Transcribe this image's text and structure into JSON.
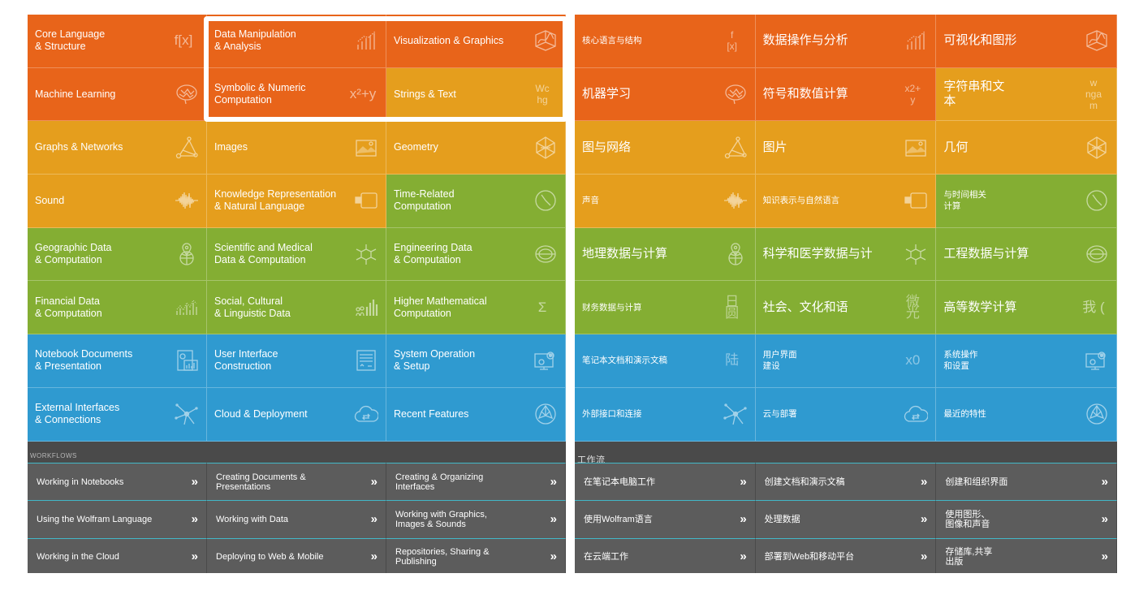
{
  "colors": {
    "orange": "#e8641a",
    "amber": "#e59e1d",
    "green": "#84ae33",
    "blue": "#2f9ad0",
    "workflow_bg": "#5c5c5c",
    "workflow_accent": "#42b8c8"
  },
  "english": {
    "tiles": [
      {
        "label": "Core Language\n& Structure",
        "color": "orange",
        "icon": "function-icon",
        "glyph": "f[x]"
      },
      {
        "label": "Data Manipulation\n& Analysis",
        "color": "orange",
        "icon": "bar-chart-icon",
        "glyph": ""
      },
      {
        "label": "Visualization & Graphics",
        "color": "orange",
        "icon": "3d-plot-icon",
        "glyph": ""
      },
      {
        "label": "Machine Learning",
        "color": "orange",
        "icon": "brain-icon",
        "glyph": ""
      },
      {
        "label": "Symbolic & Numeric\nComputation",
        "color": "orange",
        "icon": "equation-icon",
        "glyph": "x²+y"
      },
      {
        "label": "Strings & Text",
        "color": "amber",
        "icon": "text-icon",
        "glyph": "Wc\nhg"
      },
      {
        "label": "Graphs & Networks",
        "color": "amber",
        "icon": "graph-icon",
        "glyph": ""
      },
      {
        "label": "Images",
        "color": "amber",
        "icon": "image-icon",
        "glyph": ""
      },
      {
        "label": "Geometry",
        "color": "amber",
        "icon": "polyhedron-icon",
        "glyph": ""
      },
      {
        "label": "Sound",
        "color": "amber",
        "icon": "waveform-icon",
        "glyph": ""
      },
      {
        "label": "Knowledge Representation\n& Natural Language",
        "color": "amber",
        "icon": "speech-icon",
        "glyph": ""
      },
      {
        "label": "Time-Related\nComputation",
        "color": "green",
        "icon": "clock-icon",
        "glyph": ""
      },
      {
        "label": "Geographic Data\n& Computation",
        "color": "green",
        "icon": "globe-pin-icon",
        "glyph": ""
      },
      {
        "label": "Scientific and Medical\nData & Computation",
        "color": "green",
        "icon": "molecule-icon",
        "glyph": ""
      },
      {
        "label": "Engineering Data\n& Computation",
        "color": "green",
        "icon": "coil-icon",
        "glyph": ""
      },
      {
        "label": "Financial Data\n& Computation",
        "color": "green",
        "icon": "stock-icon",
        "glyph": ""
      },
      {
        "label": "Social, Cultural\n& Linguistic Data",
        "color": "green",
        "icon": "people-chart-icon",
        "glyph": ""
      },
      {
        "label": "Higher Mathematical\nComputation",
        "color": "green",
        "icon": "sum-icon",
        "glyph": "Σ"
      },
      {
        "label": "Notebook Documents\n& Presentation",
        "color": "blue",
        "icon": "notebook-icon",
        "glyph": ""
      },
      {
        "label": "User Interface\nConstruction",
        "color": "blue",
        "icon": "ui-panel-icon",
        "glyph": ""
      },
      {
        "label": "System Operation\n& Setup",
        "color": "blue",
        "icon": "gear-monitor-icon",
        "glyph": ""
      },
      {
        "label": "External Interfaces\n& Connections",
        "color": "blue",
        "icon": "network-icon",
        "glyph": ""
      },
      {
        "label": "Cloud & Deployment",
        "color": "blue",
        "icon": "cloud-icon",
        "glyph": ""
      },
      {
        "label": "Recent Features",
        "color": "blue",
        "icon": "spikey-icon",
        "glyph": ""
      }
    ],
    "workflows_title": "WORKFLOWS",
    "workflows": [
      "Working in Notebooks",
      "Creating Documents &\nPresentations",
      "Creating & Organizing\nInterfaces",
      "Using the Wolfram Language",
      "Working with Data",
      "Working with Graphics,\nImages & Sounds",
      "Working in the Cloud",
      "Deploying to Web & Mobile",
      "Repositories, Sharing &\nPublishing"
    ],
    "chevron": "»"
  },
  "chinese": {
    "tiles": [
      {
        "label": "核心语言与结构",
        "color": "orange",
        "icon": "function-icon",
        "glyph": "f\n[x]",
        "small": true
      },
      {
        "label": "数据操作与分析",
        "color": "orange",
        "icon": "bar-chart-icon",
        "glyph": ""
      },
      {
        "label": "可视化和图形",
        "color": "orange",
        "icon": "3d-plot-icon",
        "glyph": ""
      },
      {
        "label": "机器学习",
        "color": "orange",
        "icon": "brain-icon",
        "glyph": ""
      },
      {
        "label": "符号和数值计算",
        "color": "orange",
        "icon": "equation-icon",
        "glyph": "x2+\ny"
      },
      {
        "label": "字符串和文\n本",
        "color": "amber",
        "icon": "text-icon",
        "glyph": "w\nnga\nm"
      },
      {
        "label": "图与网络",
        "color": "amber",
        "icon": "graph-icon",
        "glyph": ""
      },
      {
        "label": "图片",
        "color": "amber",
        "icon": "image-icon",
        "glyph": ""
      },
      {
        "label": "几何",
        "color": "amber",
        "icon": "polyhedron-icon",
        "glyph": ""
      },
      {
        "label": "声音",
        "color": "amber",
        "icon": "waveform-icon",
        "glyph": "",
        "small": true
      },
      {
        "label": "知识表示与自然语言",
        "color": "amber",
        "icon": "speech-icon",
        "glyph": "",
        "small": true
      },
      {
        "label": "与时间相关\n计算",
        "color": "green",
        "icon": "clock-icon",
        "glyph": "",
        "small": true
      },
      {
        "label": "地理数据与计算",
        "color": "green",
        "icon": "globe-pin-icon",
        "glyph": ""
      },
      {
        "label": "科学和医学数据与计",
        "color": "green",
        "icon": "molecule-icon",
        "glyph": ""
      },
      {
        "label": "工程数据与计算",
        "color": "green",
        "icon": "coil-icon",
        "glyph": ""
      },
      {
        "label": "财务数据与计算",
        "color": "green",
        "icon": "stock-icon",
        "glyph": "日\n圆",
        "small": true
      },
      {
        "label": "社会、文化和语",
        "color": "green",
        "icon": "people-chart-icon",
        "glyph": "微\n光"
      },
      {
        "label": "高等数学计算",
        "color": "green",
        "icon": "sum-icon",
        "glyph": "我 ("
      },
      {
        "label": "笔记本文档和演示文稿",
        "color": "blue",
        "icon": "notebook-icon",
        "glyph": "陆",
        "small": true
      },
      {
        "label": "用户界面\n建设",
        "color": "blue",
        "icon": "ui-panel-icon",
        "glyph": "x0",
        "small": true
      },
      {
        "label": "系统操作\n和设置",
        "color": "blue",
        "icon": "gear-monitor-icon",
        "glyph": "",
        "small": true
      },
      {
        "label": "外部接口和连接",
        "color": "blue",
        "icon": "network-icon",
        "glyph": "",
        "small": true
      },
      {
        "label": "云与部署",
        "color": "blue",
        "icon": "cloud-icon",
        "glyph": "",
        "small": true
      },
      {
        "label": "最近的特性",
        "color": "blue",
        "icon": "spikey-icon",
        "glyph": "",
        "small": true
      }
    ],
    "workflows_title": "工作流",
    "workflows": [
      "在笔记本电脑工作",
      "创建文档和演示文稿",
      "创建和组织界面",
      "使用Wolfram语言",
      "处理数据",
      "使用图形、\n图像和声音",
      "在云端工作",
      "部署到Web和移动平台",
      "存储库,共享\n出版"
    ],
    "chevron": "»"
  }
}
